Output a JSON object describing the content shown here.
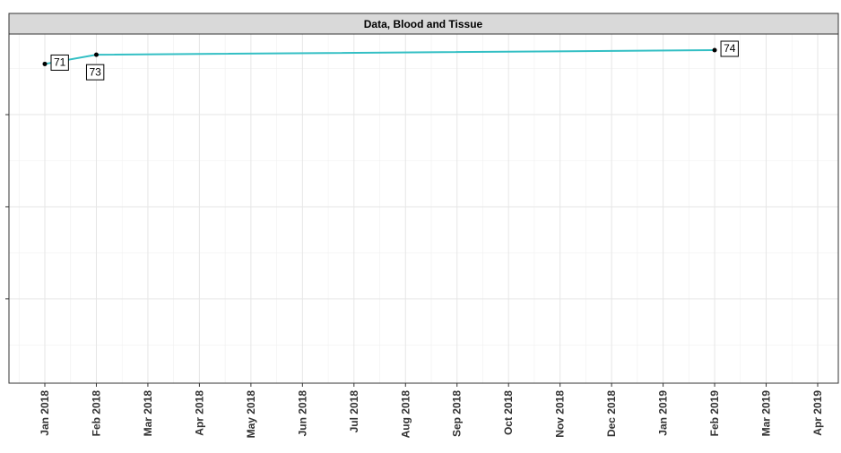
{
  "chart_data": {
    "type": "line",
    "title": "Data, Blood and Tissue",
    "x": [
      "Jan 2018",
      "Feb 2018",
      "Feb 2019"
    ],
    "series": [
      {
        "color": "#33bfc4",
        "values": [
          71,
          73,
          74
        ]
      }
    ],
    "xticks": [
      "Jan 2018",
      "Feb 2018",
      "Mar 2018",
      "Apr 2018",
      "May 2018",
      "Jun 2018",
      "Jul 2018",
      "Aug 2018",
      "Sep 2018",
      "Oct 2018",
      "Nov 2018",
      "Dec 2018",
      "Jan 2019",
      "Feb 2019",
      "Mar 2019",
      "Apr 2019"
    ],
    "ylim": [
      1.7,
      77.5
    ],
    "yticks": [
      20,
      40,
      60
    ],
    "grid": true
  }
}
